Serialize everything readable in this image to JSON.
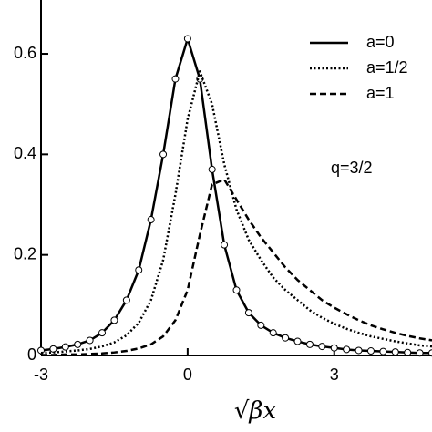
{
  "chart_data": {
    "type": "line",
    "x_label": "√βx",
    "annotation": "q=3/2",
    "x": [
      -3,
      -2.75,
      -2.5,
      -2.25,
      -2,
      -1.75,
      -1.5,
      -1.25,
      -1,
      -0.75,
      -0.5,
      -0.25,
      0,
      0.25,
      0.5,
      0.75,
      1,
      1.25,
      1.5,
      1.75,
      2,
      2.25,
      2.5,
      2.75,
      3,
      3.25,
      3.5,
      3.75,
      4,
      4.25,
      4.5,
      4.75,
      5
    ],
    "series": [
      {
        "name": "a=0",
        "color": "#000000",
        "dash": "solid",
        "markers": true,
        "values": [
          0.01,
          0.013,
          0.017,
          0.022,
          0.03,
          0.045,
          0.07,
          0.11,
          0.17,
          0.27,
          0.4,
          0.55,
          0.63,
          0.55,
          0.37,
          0.22,
          0.13,
          0.085,
          0.06,
          0.045,
          0.035,
          0.028,
          0.022,
          0.018,
          0.015,
          0.012,
          0.01,
          0.009,
          0.008,
          0.007,
          0.006,
          0.005,
          0.005
        ]
      },
      {
        "name": "a=1/2",
        "color": "#000000",
        "dash": "dotted",
        "markers": false,
        "values": [
          0.005,
          0.006,
          0.008,
          0.01,
          0.013,
          0.018,
          0.026,
          0.04,
          0.065,
          0.11,
          0.19,
          0.32,
          0.47,
          0.565,
          0.5,
          0.38,
          0.29,
          0.23,
          0.19,
          0.155,
          0.13,
          0.11,
          0.09,
          0.075,
          0.063,
          0.053,
          0.045,
          0.038,
          0.033,
          0.028,
          0.024,
          0.02,
          0.018
        ]
      },
      {
        "name": "a=1",
        "color": "#000000",
        "dash": "dashed",
        "markers": false,
        "values": [
          0.001,
          0.001,
          0.002,
          0.002,
          0.003,
          0.004,
          0.006,
          0.009,
          0.014,
          0.022,
          0.038,
          0.07,
          0.13,
          0.24,
          0.34,
          0.35,
          0.31,
          0.27,
          0.235,
          0.205,
          0.175,
          0.15,
          0.13,
          0.11,
          0.095,
          0.082,
          0.07,
          0.06,
          0.052,
          0.045,
          0.039,
          0.034,
          0.03
        ]
      }
    ],
    "xlim": [
      -3,
      5
    ],
    "xticks": [
      -3,
      0,
      3
    ],
    "ylim": [
      0,
      0.707
    ],
    "yticks": [
      0,
      0.2,
      0.4,
      0.6
    ],
    "legend": "top-right"
  }
}
